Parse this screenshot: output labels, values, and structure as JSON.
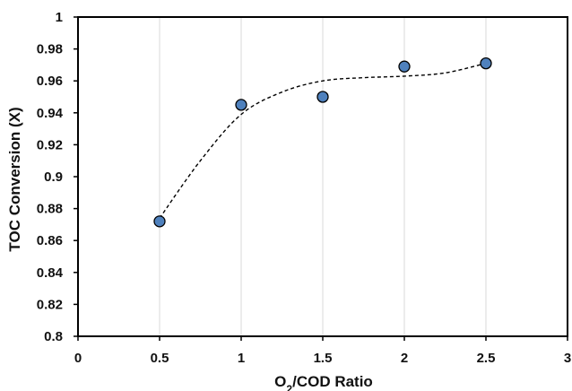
{
  "chart_data": {
    "type": "scatter",
    "title": "",
    "xlabel_main": "O",
    "xlabel_sub": "2",
    "xlabel_rest": "/COD Ratio",
    "ylabel": "TOC Conversion (X)",
    "xlim": [
      0,
      3
    ],
    "ylim": [
      0.8,
      1
    ],
    "x_ticks": [
      "0",
      "0.5",
      "1",
      "1.5",
      "2",
      "2.5",
      "3"
    ],
    "y_ticks": [
      "0.8",
      "0.82",
      "0.84",
      "0.86",
      "0.88",
      "0.9",
      "0.92",
      "0.94",
      "0.96",
      "0.98",
      "1"
    ],
    "grid": "vertical",
    "legend": "none",
    "series": [
      {
        "x": [
          0.5,
          1.0,
          1.5,
          2.0,
          2.5
        ],
        "y": [
          0.872,
          0.945,
          0.95,
          0.969,
          0.971
        ]
      }
    ],
    "trendline": {
      "style": "dashed",
      "x": [
        0.5,
        0.75,
        1.0,
        1.25,
        1.5,
        1.75,
        2.0,
        2.25,
        2.5
      ],
      "y": [
        0.874,
        0.91,
        0.939,
        0.953,
        0.96,
        0.962,
        0.963,
        0.965,
        0.971
      ]
    },
    "colors": {
      "marker_fill": "#4f81bd",
      "marker_edge": "#000000",
      "trendline": "#000000",
      "grid": "#d9d9d9",
      "axis": "#000000"
    }
  }
}
